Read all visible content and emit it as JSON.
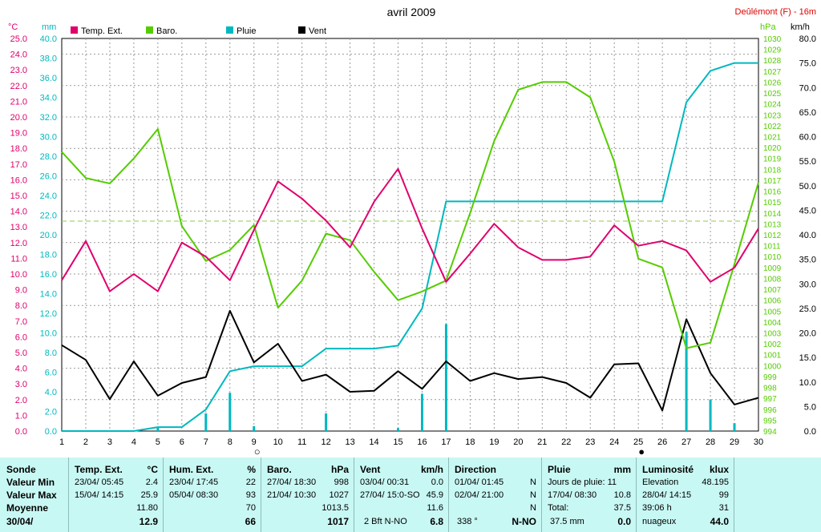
{
  "chart_data": {
    "type": "line",
    "title": "avril 2009",
    "station": "Deûlémont (F) - 16m",
    "x": [
      1,
      2,
      3,
      4,
      5,
      6,
      7,
      8,
      9,
      10,
      11,
      12,
      13,
      14,
      15,
      16,
      17,
      18,
      19,
      20,
      21,
      22,
      23,
      24,
      25,
      26,
      27,
      28,
      29,
      30
    ],
    "xlim": [
      1,
      30
    ],
    "axes": {
      "temp": {
        "unit": "°C",
        "range": [
          0.0,
          25.0
        ],
        "ticks": [
          "0.0",
          "1.0",
          "2.0",
          "3.0",
          "4.0",
          "5.0",
          "6.0",
          "7.0",
          "8.0",
          "9.0",
          "10.0",
          "11.0",
          "12.0",
          "13.0",
          "14.0",
          "15.0",
          "16.0",
          "17.0",
          "18.0",
          "19.0",
          "20.0",
          "21.0",
          "22.0",
          "23.0",
          "24.0",
          "25.0"
        ],
        "color": "#e0006c"
      },
      "rain": {
        "unit": "mm",
        "range": [
          0.0,
          40.0
        ],
        "ticks": [
          "0.0",
          "2.0",
          "4.0",
          "6.0",
          "8.0",
          "10.0",
          "12.0",
          "14.0",
          "16.0",
          "18.0",
          "20.0",
          "22.0",
          "24.0",
          "26.0",
          "28.0",
          "30.0",
          "32.0",
          "34.0",
          "36.0",
          "38.0",
          "40.0"
        ],
        "color": "#00b8c0"
      },
      "baro": {
        "unit": "hPa",
        "range": [
          994,
          1030
        ],
        "ticks": [
          "994",
          "995",
          "996",
          "997",
          "998",
          "999",
          "1000",
          "1001",
          "1002",
          "1003",
          "1004",
          "1005",
          "1006",
          "1007",
          "1008",
          "1009",
          "1010",
          "1011",
          "1012",
          "1013",
          "1014",
          "1015",
          "1016",
          "1017",
          "1018",
          "1019",
          "1020",
          "1021",
          "1022",
          "1023",
          "1024",
          "1025",
          "1026",
          "1027",
          "1028",
          "1029",
          "1030"
        ],
        "color": "#55cc00"
      },
      "wind": {
        "unit": "km/h",
        "range": [
          0.0,
          80.0
        ],
        "ticks": [
          "0.0",
          "5.0",
          "10.0",
          "15.0",
          "20.0",
          "25.0",
          "30.0",
          "35.0",
          "40.0",
          "45.0",
          "50.0",
          "55.0",
          "60.0",
          "65.0",
          "70.0",
          "75.0",
          "80.0"
        ],
        "color": "#000000"
      }
    },
    "reference_line": {
      "axis": "baro",
      "value": 1013.25,
      "color": "#88cc44"
    },
    "moon_phases": [
      {
        "x": 9,
        "symbol": "○"
      },
      {
        "x": 25,
        "symbol": "●"
      }
    ],
    "series": [
      {
        "name": "Temp. Ext.",
        "axis": "temp",
        "color": "#e0006c",
        "values": [
          9.6,
          12.1,
          8.9,
          10.0,
          8.9,
          12.0,
          11.1,
          9.6,
          12.8,
          15.9,
          14.8,
          13.4,
          11.7,
          14.6,
          16.7,
          12.9,
          9.5,
          11.3,
          13.2,
          11.7,
          10.9,
          10.9,
          11.1,
          13.1,
          11.8,
          12.1,
          11.5,
          9.5,
          10.4,
          12.9
        ],
        "color_legend": "#e0006c"
      },
      {
        "name": "Baro.",
        "axis": "baro",
        "color": "#55cc00",
        "values": [
          1019.6,
          1017.2,
          1016.7,
          1019.0,
          1021.7,
          1012.8,
          1009.6,
          1010.6,
          1012.9,
          1005.3,
          1007.8,
          1012.1,
          1011.5,
          1008.6,
          1006.0,
          1006.8,
          1007.8,
          1014.0,
          1020.6,
          1025.3,
          1026.0,
          1026.0,
          1024.6,
          1018.7,
          1009.8,
          1009.0,
          1001.6,
          1002.1,
          1009.3,
          1016.8
        ]
      },
      {
        "name": "Pluie",
        "axis": "rain",
        "kind": "cumulative",
        "color": "#00b8c0",
        "values": [
          0.0,
          0.0,
          0.0,
          0.0,
          0.4,
          0.4,
          2.2,
          6.1,
          6.6,
          6.6,
          6.6,
          8.4,
          8.4,
          8.4,
          8.7,
          12.5,
          23.4,
          23.4,
          23.4,
          23.4,
          23.4,
          23.4,
          23.4,
          23.4,
          23.4,
          23.4,
          33.5,
          36.7,
          37.5,
          37.5
        ]
      },
      {
        "name": "Pluie",
        "axis": "rain",
        "kind": "daily",
        "color": "#00b8c0",
        "values": [
          0,
          0,
          0,
          0,
          0.4,
          0,
          1.8,
          3.9,
          0.5,
          0,
          0,
          1.8,
          0,
          0,
          0.3,
          3.8,
          10.9,
          0,
          0,
          0,
          0,
          0,
          0,
          0,
          0,
          0,
          10.1,
          3.2,
          0.8,
          0
        ]
      },
      {
        "name": "Vent",
        "axis": "wind",
        "color": "#000000",
        "values": [
          17.5,
          14.5,
          6.5,
          14.2,
          7.2,
          9.8,
          11.0,
          24.5,
          14.0,
          17.8,
          10.2,
          11.5,
          8.0,
          8.2,
          12.2,
          8.6,
          14.2,
          10.2,
          11.8,
          10.6,
          11.0,
          9.8,
          6.8,
          13.6,
          13.8,
          4.2,
          22.8,
          11.8,
          5.4,
          6.8
        ]
      }
    ]
  },
  "stats": {
    "sonde": {
      "title": "Sonde",
      "min": "Valeur Min",
      "max": "Valeur Max",
      "avg": "Moyenne",
      "date": "30/04/"
    },
    "temp": {
      "title": "Temp. Ext.",
      "unit": "°C",
      "min_time": "23/04/  05:45",
      "min_val": "2.4",
      "max_time": "15/04/  14:15",
      "max_val": "25.9",
      "avg": "11.80",
      "current": "12.9"
    },
    "hum": {
      "title": "Hum. Ext.",
      "unit": "%",
      "min_time": "23/04/  17:45",
      "min_val": "22",
      "max_time": "05/04/  08:30",
      "max_val": "93",
      "avg": "70",
      "current": "66"
    },
    "baro": {
      "title": "Baro.",
      "unit": "hPa",
      "min_time": "27/04/  18:30",
      "min_val": "998",
      "max_time": "21/04/  10:30",
      "max_val": "1027",
      "avg": "1013.5",
      "current": "1017"
    },
    "wind": {
      "title": "Vent",
      "unit": "km/h",
      "min_time": "03/04/  00:31",
      "min_val": "0.0",
      "max_time": "27/04/  15:0-SO",
      "max_val": "45.9",
      "avg": "11.6",
      "current_label": "2 Bft N-NO",
      "current": "6.8"
    },
    "dir": {
      "title": "Direction",
      "min_time": "01/04/  01:45",
      "min_val": "N",
      "max_time": "02/04/  21:00",
      "max_val": "N",
      "avg": "N",
      "current_deg": "338 °",
      "current": "N-NO"
    },
    "rain": {
      "title": "Pluie",
      "unit": "mm",
      "days_label": "Jours de pluie: 11",
      "max_time": "17/04/  08:30",
      "max_val": "10.8",
      "total_label": "Total:",
      "total": "37.5",
      "current_label": "37.5 mm",
      "current": "0.0"
    },
    "lum": {
      "title": "Luminosité",
      "unit": "klux",
      "elev_label": "Elevation",
      "elev": "48.195",
      "max_time": "28/04/  14:15",
      "max_val": "99",
      "dur_label": "39:06 h",
      "dur": "31",
      "current_label": "nuageux",
      "current": "44.0"
    }
  }
}
